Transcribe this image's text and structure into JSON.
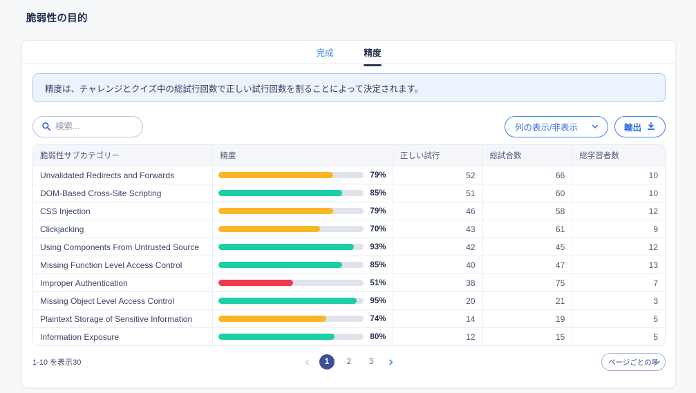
{
  "page_title": "脆弱性の目的",
  "tabs": [
    {
      "label": "完成",
      "active": false
    },
    {
      "label": "精度",
      "active": true
    }
  ],
  "info_banner": "精度は、チャレンジとクイズ中の総試行回数で正しい試行回数を割ることによって決定されます。",
  "toolbar": {
    "search_placeholder": "検索...",
    "columns_toggle_label": "列の表示/非表示",
    "export_label": "輸出"
  },
  "table": {
    "columns": [
      "脆弱性サブカテゴリー",
      "精度",
      "正しい試行",
      "総試合数",
      "総学習者数"
    ],
    "rows": [
      {
        "name": "Unvalidated Redirects and Forwards",
        "accuracy": 79,
        "accuracy_label": "79%",
        "correct": 52,
        "total": 66,
        "learners": 10,
        "color": "amber"
      },
      {
        "name": "DOM-Based Cross-Site Scripting",
        "accuracy": 85,
        "accuracy_label": "85%",
        "correct": 51,
        "total": 60,
        "learners": 10,
        "color": "green"
      },
      {
        "name": "CSS Injection",
        "accuracy": 79,
        "accuracy_label": "79%",
        "correct": 46,
        "total": 58,
        "learners": 12,
        "color": "amber"
      },
      {
        "name": "Clickjacking",
        "accuracy": 70,
        "accuracy_label": "70%",
        "correct": 43,
        "total": 61,
        "learners": 9,
        "color": "amber"
      },
      {
        "name": "Using Components From Untrusted Source",
        "accuracy": 93,
        "accuracy_label": "93%",
        "correct": 42,
        "total": 45,
        "learners": 12,
        "color": "green"
      },
      {
        "name": "Missing Function Level Access Control",
        "accuracy": 85,
        "accuracy_label": "85%",
        "correct": 40,
        "total": 47,
        "learners": 13,
        "color": "green"
      },
      {
        "name": "Improper Authentication",
        "accuracy": 51,
        "accuracy_label": "51%",
        "correct": 38,
        "total": 75,
        "learners": 7,
        "color": "red"
      },
      {
        "name": "Missing Object Level Access Control",
        "accuracy": 95,
        "accuracy_label": "95%",
        "correct": 20,
        "total": 21,
        "learners": 3,
        "color": "green"
      },
      {
        "name": "Plaintext Storage of Sensitive Information",
        "accuracy": 74,
        "accuracy_label": "74%",
        "correct": 14,
        "total": 19,
        "learners": 5,
        "color": "amber"
      },
      {
        "name": "Information Exposure",
        "accuracy": 80,
        "accuracy_label": "80%",
        "correct": 12,
        "total": 15,
        "learners": 5,
        "color": "green"
      }
    ]
  },
  "footer": {
    "range_label": "1-10 を表示30",
    "pages": [
      "1",
      "2",
      "3"
    ],
    "current_page": "1",
    "items_per_page_label": "ページごとの項目"
  },
  "colors": {
    "amber": "#fbb624",
    "green": "#1ccfa4",
    "red": "#f0394b",
    "track": "#dfe3ec",
    "accent_blue": "#2e6be5",
    "navy": "#23304f",
    "active_page_bg": "#3f4f97"
  }
}
